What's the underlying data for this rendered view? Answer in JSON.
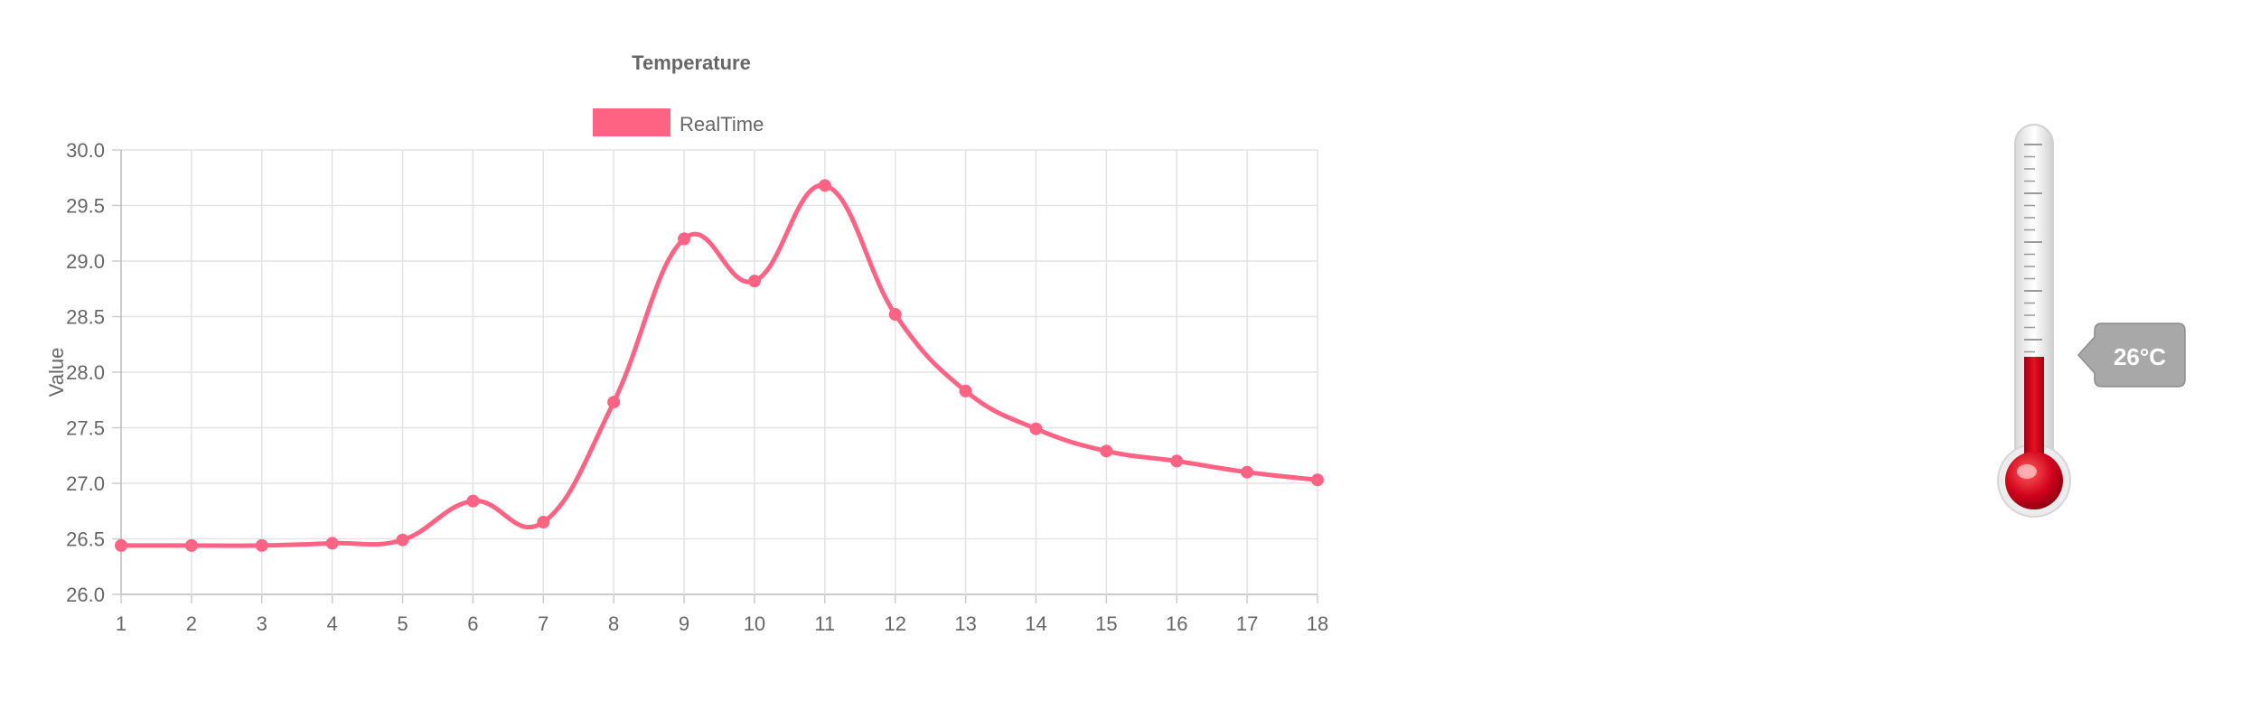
{
  "chart_data": {
    "type": "line",
    "title": "Temperature",
    "xlabel": "",
    "ylabel": "Value",
    "x": [
      1,
      2,
      3,
      4,
      5,
      6,
      7,
      8,
      9,
      10,
      11,
      12,
      13,
      14,
      15,
      16,
      17,
      18
    ],
    "series": [
      {
        "name": "RealTime",
        "color": "#ff6384",
        "values": [
          26.44,
          26.44,
          26.44,
          26.46,
          26.49,
          26.84,
          26.65,
          27.73,
          29.2,
          28.82,
          29.68,
          28.52,
          27.83,
          27.49,
          27.29,
          27.2,
          27.1,
          27.03
        ]
      }
    ],
    "ylim": [
      26.0,
      30.0
    ],
    "yticks": [
      "26.0",
      "26.5",
      "27.0",
      "27.5",
      "28.0",
      "28.5",
      "29.0",
      "29.5",
      "30.0"
    ],
    "xticks": [
      "1",
      "2",
      "3",
      "4",
      "5",
      "6",
      "7",
      "8",
      "9",
      "10",
      "11",
      "12",
      "13",
      "14",
      "15",
      "16",
      "17",
      "18"
    ],
    "grid": true,
    "legend_position": "top"
  },
  "thermometer": {
    "value": 26,
    "label": "26°C",
    "fill_color": "#d0021b"
  }
}
